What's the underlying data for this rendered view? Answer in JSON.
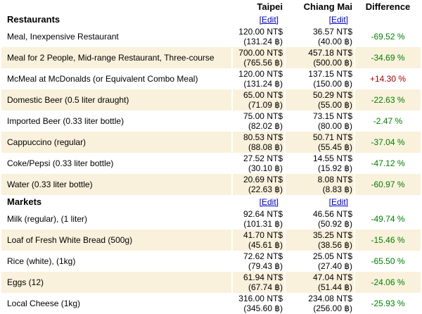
{
  "colors": {
    "row_highlight": "#faf1dc",
    "negative_green": "#008000",
    "positive_red": "#aa0000",
    "link_blue": "#0000cc"
  },
  "table": {
    "columns": [
      "Taipei",
      "Chiang Mai",
      "Difference"
    ],
    "edit_label": "[Edit]",
    "sections": [
      {
        "name": "Restaurants",
        "rows": [
          {
            "item": "Meal, Inexpensive Restaurant",
            "taipei_price": "120.00 NT$",
            "taipei_alt": "(131.24 ฿)",
            "chiangmai_price": "36.57 NT$",
            "chiangmai_alt": "(40.00 ฿)",
            "difference": "-69.52 %",
            "trend": "negative",
            "highlighted": false
          },
          {
            "item": "Meal for 2 People, Mid-range Restaurant, Three-course",
            "taipei_price": "700.00 NT$",
            "taipei_alt": "(765.56 ฿)",
            "chiangmai_price": "457.18 NT$",
            "chiangmai_alt": "(500.00 ฿)",
            "difference": "-34.69 %",
            "trend": "negative",
            "highlighted": true
          },
          {
            "item": "McMeal at McDonalds (or Equivalent Combo Meal)",
            "taipei_price": "120.00 NT$",
            "taipei_alt": "(131.24 ฿)",
            "chiangmai_price": "137.15 NT$",
            "chiangmai_alt": "(150.00 ฿)",
            "difference": "+14.30 %",
            "trend": "positive",
            "highlighted": false
          },
          {
            "item": "Domestic Beer (0.5 liter draught)",
            "taipei_price": "65.00 NT$",
            "taipei_alt": "(71.09 ฿)",
            "chiangmai_price": "50.29 NT$",
            "chiangmai_alt": "(55.00 ฿)",
            "difference": "-22.63 %",
            "trend": "negative",
            "highlighted": true
          },
          {
            "item": "Imported Beer (0.33 liter bottle)",
            "taipei_price": "75.00 NT$",
            "taipei_alt": "(82.02 ฿)",
            "chiangmai_price": "73.15 NT$",
            "chiangmai_alt": "(80.00 ฿)",
            "difference": "-2.47 %",
            "trend": "negative",
            "highlighted": false
          },
          {
            "item": "Cappuccino (regular)",
            "taipei_price": "80.53 NT$",
            "taipei_alt": "(88.08 ฿)",
            "chiangmai_price": "50.71 NT$",
            "chiangmai_alt": "(55.45 ฿)",
            "difference": "-37.04 %",
            "trend": "negative",
            "highlighted": true
          },
          {
            "item": "Coke/Pepsi (0.33 liter bottle)",
            "taipei_price": "27.52 NT$",
            "taipei_alt": "(30.10 ฿)",
            "chiangmai_price": "14.55 NT$",
            "chiangmai_alt": "(15.92 ฿)",
            "difference": "-47.12 %",
            "trend": "negative",
            "highlighted": false
          },
          {
            "item": "Water (0.33 liter bottle)",
            "taipei_price": "20.69 NT$",
            "taipei_alt": "(22.63 ฿)",
            "chiangmai_price": "8.08 NT$",
            "chiangmai_alt": "(8.83 ฿)",
            "difference": "-60.97 %",
            "trend": "negative",
            "highlighted": true
          }
        ]
      },
      {
        "name": "Markets",
        "rows": [
          {
            "item": "Milk (regular), (1 liter)",
            "taipei_price": "92.64 NT$",
            "taipei_alt": "(101.31 ฿)",
            "chiangmai_price": "46.56 NT$",
            "chiangmai_alt": "(50.92 ฿)",
            "difference": "-49.74 %",
            "trend": "negative",
            "highlighted": false
          },
          {
            "item": "Loaf of Fresh White Bread (500g)",
            "taipei_price": "41.70 NT$",
            "taipei_alt": "(45.61 ฿)",
            "chiangmai_price": "35.25 NT$",
            "chiangmai_alt": "(38.56 ฿)",
            "difference": "-15.46 %",
            "trend": "negative",
            "highlighted": true
          },
          {
            "item": "Rice (white), (1kg)",
            "taipei_price": "72.62 NT$",
            "taipei_alt": "(79.43 ฿)",
            "chiangmai_price": "25.05 NT$",
            "chiangmai_alt": "(27.40 ฿)",
            "difference": "-65.50 %",
            "trend": "negative",
            "highlighted": false
          },
          {
            "item": "Eggs (12)",
            "taipei_price": "61.94 NT$",
            "taipei_alt": "(67.74 ฿)",
            "chiangmai_price": "47.04 NT$",
            "chiangmai_alt": "(51.44 ฿)",
            "difference": "-24.06 %",
            "trend": "negative",
            "highlighted": true
          },
          {
            "item": "Local Cheese (1kg)",
            "taipei_price": "316.00 NT$",
            "taipei_alt": "(345.60 ฿)",
            "chiangmai_price": "234.08 NT$",
            "chiangmai_alt": "(256.00 ฿)",
            "difference": "-25.93 %",
            "trend": "negative",
            "highlighted": false
          }
        ]
      }
    ]
  }
}
